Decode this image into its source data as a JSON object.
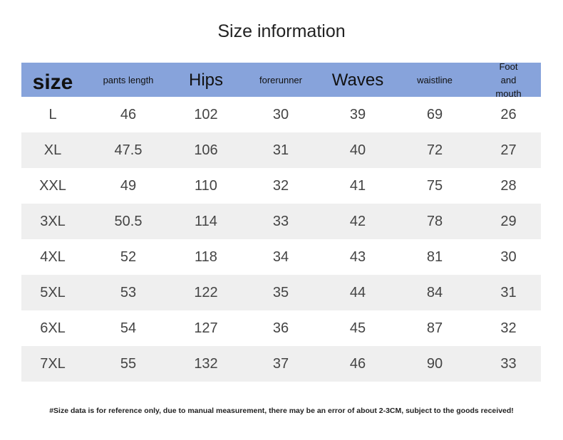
{
  "header": {
    "title": "Size information"
  },
  "table": {
    "columns": [
      "size",
      "pants length",
      "Hips",
      "forerunner",
      "Waves",
      "waistline",
      "Foot and mouth"
    ],
    "rows": [
      [
        "L",
        46,
        102,
        30,
        39,
        69,
        26
      ],
      [
        "XL",
        47.5,
        106,
        31,
        40,
        72,
        27
      ],
      [
        "XXL",
        49,
        110,
        32,
        41,
        75,
        28
      ],
      [
        "3XL",
        50.5,
        114,
        33,
        42,
        78,
        29
      ],
      [
        "4XL",
        52,
        118,
        34,
        43,
        81,
        30
      ],
      [
        "5XL",
        53,
        122,
        35,
        44,
        84,
        31
      ],
      [
        "6XL",
        54,
        127,
        36,
        45,
        87,
        32
      ],
      [
        "7XL",
        55,
        132,
        37,
        46,
        90,
        33
      ]
    ]
  },
  "footnote": "#Size data is for reference only, due to manual measurement, there may be an error of about 2-3CM, subject to the goods received!"
}
